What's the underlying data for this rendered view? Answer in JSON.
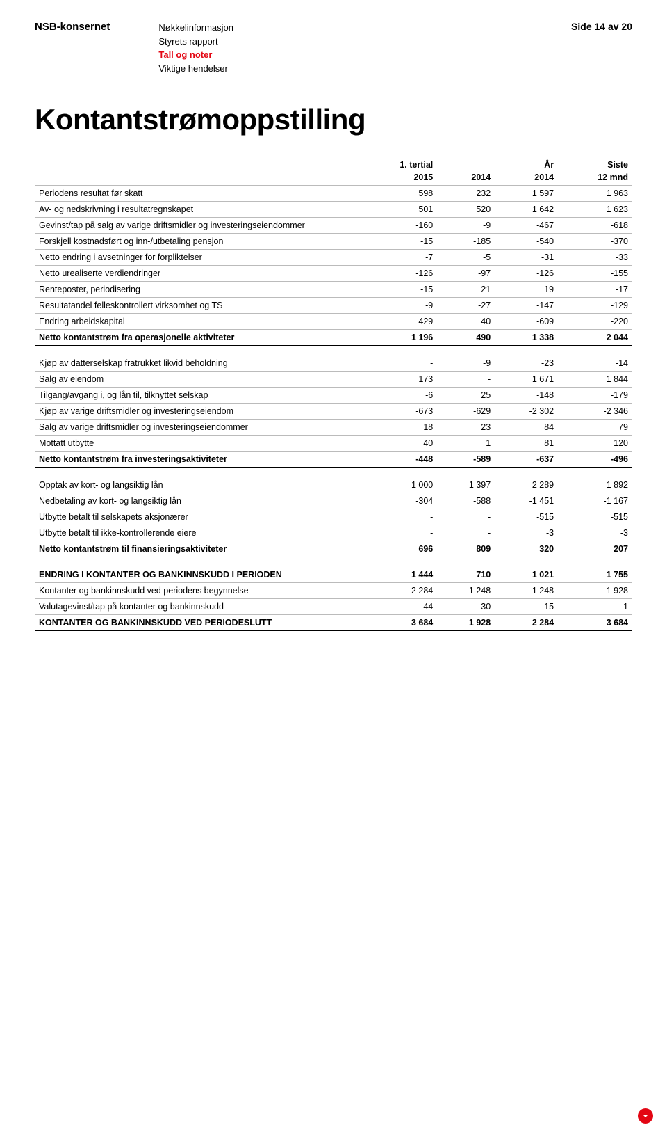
{
  "header": {
    "brand": "NSB-konsernet",
    "nav": [
      {
        "label": "Nøkkelinformasjon",
        "active": false
      },
      {
        "label": "Styrets rapport",
        "active": false
      },
      {
        "label": "Tall og noter",
        "active": true
      },
      {
        "label": "Viktige hendelser",
        "active": false
      }
    ],
    "page_number": "Side 14 av 20"
  },
  "title": "Kontantstrømoppstilling",
  "table": {
    "header_top": [
      "",
      "1. tertial",
      "",
      "År",
      "Siste"
    ],
    "header_bottom": [
      "",
      "2015",
      "2014",
      "2014",
      "12 mnd"
    ],
    "sections": [
      {
        "rows": [
          {
            "label": "Periodens resultat før skatt",
            "values": [
              "598",
              "232",
              "1 597",
              "1 963"
            ]
          },
          {
            "label": "Av- og nedskrivning i resultatregnskapet",
            "values": [
              "501",
              "520",
              "1 642",
              "1 623"
            ]
          },
          {
            "label": "Gevinst/tap på salg av varige driftsmidler og investeringseiendommer",
            "values": [
              "-160",
              "-9",
              "-467",
              "-618"
            ]
          },
          {
            "label": "Forskjell kostnadsført og inn-/utbetaling pensjon",
            "values": [
              "-15",
              "-185",
              "-540",
              "-370"
            ]
          },
          {
            "label": "Netto endring i avsetninger for forpliktelser",
            "values": [
              "-7",
              "-5",
              "-31",
              "-33"
            ]
          },
          {
            "label": "Netto urealiserte verdiendringer",
            "values": [
              "-126",
              "-97",
              "-126",
              "-155"
            ]
          },
          {
            "label": "Renteposter, periodisering",
            "values": [
              "-15",
              "21",
              "19",
              "-17"
            ]
          },
          {
            "label": "Resultatandel felleskontrollert virksomhet og TS",
            "values": [
              "-9",
              "-27",
              "-147",
              "-129"
            ]
          },
          {
            "label": "Endring arbeidskapital",
            "values": [
              "429",
              "40",
              "-609",
              "-220"
            ]
          }
        ],
        "total": {
          "label": "Netto kontantstrøm fra operasjonelle aktiviteter",
          "values": [
            "1 196",
            "490",
            "1 338",
            "2 044"
          ]
        }
      },
      {
        "rows": [
          {
            "label": "Kjøp av datterselskap fratrukket likvid beholdning",
            "values": [
              "-",
              "-9",
              "-23",
              "-14"
            ]
          },
          {
            "label": "Salg av eiendom",
            "values": [
              "173",
              "-",
              "1 671",
              "1 844"
            ]
          },
          {
            "label": "Tilgang/avgang i, og lån til, tilknyttet selskap",
            "values": [
              "-6",
              "25",
              "-148",
              "-179"
            ]
          },
          {
            "label": "Kjøp av varige driftsmidler og investeringseiendom",
            "values": [
              "-673",
              "-629",
              "-2 302",
              "-2 346"
            ]
          },
          {
            "label": "Salg av varige driftsmidler og investeringseiendommer",
            "values": [
              "18",
              "23",
              "84",
              "79"
            ]
          },
          {
            "label": "Mottatt utbytte",
            "values": [
              "40",
              "1",
              "81",
              "120"
            ]
          }
        ],
        "total": {
          "label": "Netto kontantstrøm fra investeringsaktiviteter",
          "values": [
            "-448",
            "-589",
            "-637",
            "-496"
          ]
        }
      },
      {
        "rows": [
          {
            "label": "Opptak av kort- og langsiktig lån",
            "values": [
              "1 000",
              "1 397",
              "2 289",
              "1 892"
            ]
          },
          {
            "label": "Nedbetaling av kort- og langsiktig lån",
            "values": [
              "-304",
              "-588",
              "-1 451",
              "-1 167"
            ]
          },
          {
            "label": "Utbytte betalt til selskapets aksjonærer",
            "values": [
              "-",
              "-",
              "-515",
              "-515"
            ]
          },
          {
            "label": "Utbytte betalt til ikke-kontrollerende eiere",
            "values": [
              "-",
              "-",
              "-3",
              "-3"
            ]
          }
        ],
        "total": {
          "label": "Netto kontantstrøm til finansieringsaktiviteter",
          "values": [
            "696",
            "809",
            "320",
            "207"
          ]
        }
      },
      {
        "rows": [
          {
            "label": "ENDRING I KONTANTER OG BANKINNSKUDD I PERIODEN",
            "values": [
              "1 444",
              "710",
              "1 021",
              "1 755"
            ],
            "bold": true
          },
          {
            "label": "Kontanter og bankinnskudd ved periodens begynnelse",
            "values": [
              "2 284",
              "1 248",
              "1 248",
              "1 928"
            ]
          },
          {
            "label": "Valutagevinst/tap på kontanter og bankinnskudd",
            "values": [
              "-44",
              "-30",
              "15",
              "1"
            ]
          }
        ],
        "total": {
          "label": "KONTANTER OG BANKINNSKUDD VED PERIODESLUTT",
          "values": [
            "3 684",
            "1 928",
            "2 284",
            "3 684"
          ]
        }
      }
    ]
  }
}
